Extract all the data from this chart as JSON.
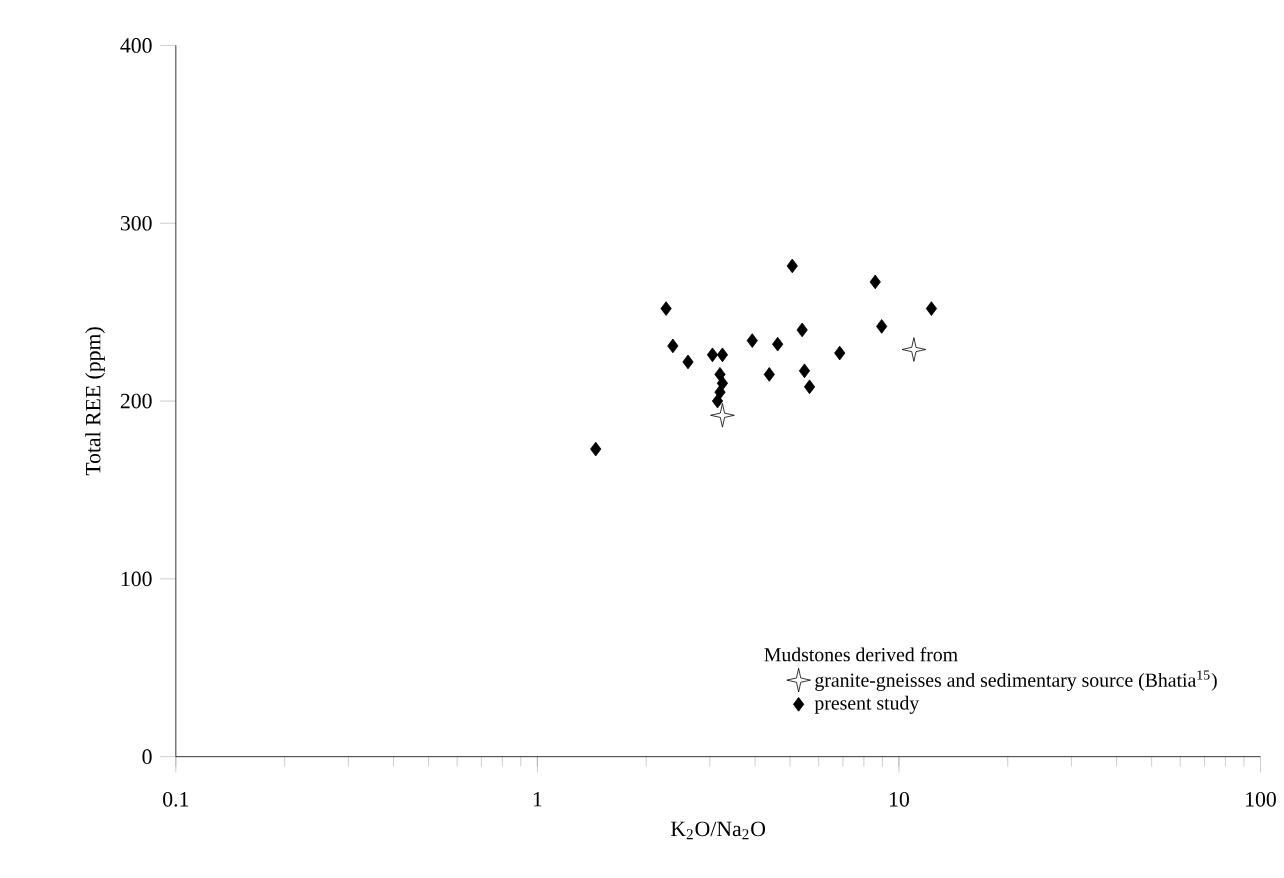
{
  "chart_data": {
    "type": "scatter",
    "xlabel": "K$_{2}$O/Na$_{2}$O",
    "ylabel": "Total REE (ppm)",
    "legend_title": "Mudstones derived from",
    "log": "x",
    "xlim": [
      0.1,
      100
    ],
    "xticks": [
      0.1,
      1,
      10,
      100
    ],
    "ylim": [
      0,
      400
    ],
    "yticks": [
      0,
      100,
      200,
      300,
      400
    ],
    "legend": "bottom right",
    "grid": false,
    "series": [
      {
        "name": "granite-gneisses and sedimentary source (Bhatia$^{15}$)",
        "color": "#000000",
        "marker": "star",
        "x": [
          3.25,
          11.0
        ],
        "values": [
          192,
          229
        ]
      },
      {
        "name": "present study",
        "color": "#000000",
        "marker": "diamond",
        "x": [
          1.45,
          2.27,
          2.37,
          2.61,
          3.05,
          3.25,
          3.2,
          3.25,
          3.2,
          3.15,
          3.93,
          4.62,
          4.38,
          5.07,
          5.4,
          5.48,
          5.66,
          6.86,
          8.6,
          8.96,
          12.3
        ],
        "values": [
          173,
          252,
          231,
          222,
          226,
          226,
          215,
          210,
          205,
          200,
          234,
          232,
          215,
          276,
          240,
          217,
          208,
          227,
          267,
          242,
          252
        ]
      }
    ]
  }
}
